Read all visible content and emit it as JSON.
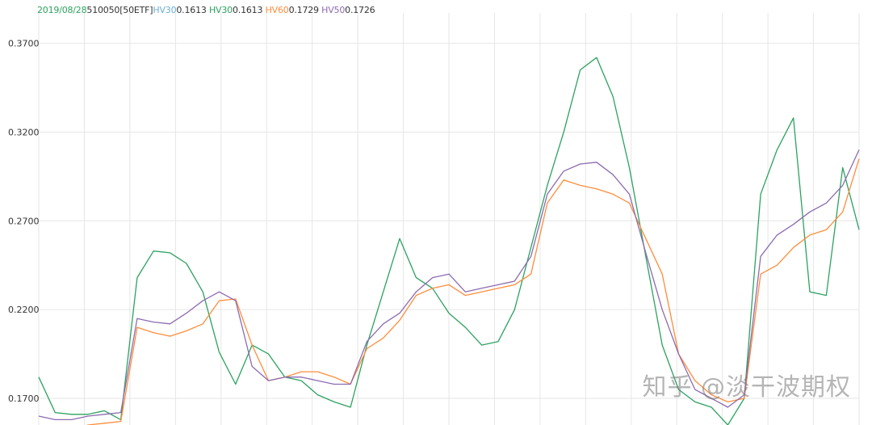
{
  "legend": {
    "date": "2019/08/28",
    "symbol": "510050[50ETF]",
    "items": [
      {
        "label": "HV30",
        "value": "0.1613",
        "color": "#6baed6"
      },
      {
        "label": "HV30",
        "value": "0.1613",
        "color": "#2ca25f"
      },
      {
        "label": "HV60",
        "value": "0.1729",
        "color": "#fd8d3c"
      },
      {
        "label": "HV50",
        "value": "0.1726",
        "color": "#8c6bb1"
      }
    ],
    "value_color": "#333333",
    "date_color": "#2ca25f"
  },
  "watermark": "知乎 @淡干波期权",
  "chart_data": {
    "type": "line",
    "y_ticks": [
      "0.3700",
      "0.3200",
      "0.2700",
      "0.2200",
      "0.1700"
    ],
    "ylim": [
      0.155,
      0.378
    ],
    "grid": true,
    "x": [
      0,
      1,
      2,
      3,
      4,
      5,
      6,
      7,
      8,
      9,
      10,
      11,
      12,
      13,
      14,
      15,
      16,
      17,
      18,
      19,
      20,
      21,
      22,
      23,
      24,
      25,
      26,
      27,
      28,
      29,
      30,
      31,
      32,
      33,
      34,
      35,
      36,
      37,
      38,
      39,
      40,
      41,
      42,
      43,
      44,
      45,
      46,
      47,
      48,
      49,
      50
    ],
    "series": [
      {
        "color": "#2ca25f",
        "values": [
          0.182,
          0.162,
          0.161,
          0.161,
          0.163,
          0.158,
          0.238,
          0.253,
          0.252,
          0.246,
          0.23,
          0.196,
          0.178,
          0.2,
          0.195,
          0.182,
          0.18,
          0.172,
          0.168,
          0.165,
          0.2,
          0.23,
          0.26,
          0.238,
          0.232,
          0.218,
          0.21,
          0.2,
          0.202,
          0.22,
          0.255,
          0.29,
          0.32,
          0.355,
          0.362,
          0.34,
          0.3,
          0.25,
          0.2,
          0.175,
          0.168,
          0.165,
          0.155,
          0.17,
          0.285,
          0.31,
          0.328,
          0.23,
          0.228,
          0.3,
          0.265
        ]
      },
      {
        "color": "#fd8d3c",
        "values": [
          0.149,
          0.15,
          0.152,
          0.155,
          0.156,
          0.157,
          0.21,
          0.207,
          0.205,
          0.208,
          0.212,
          0.225,
          0.226,
          0.2,
          0.18,
          0.182,
          0.185,
          0.185,
          0.182,
          0.178,
          0.198,
          0.204,
          0.214,
          0.228,
          0.232,
          0.234,
          0.228,
          0.23,
          0.232,
          0.234,
          0.24,
          0.28,
          0.293,
          0.29,
          0.288,
          0.285,
          0.28,
          0.26,
          0.24,
          0.195,
          0.18,
          0.172,
          0.168,
          0.17,
          0.24,
          0.245,
          0.255,
          0.262,
          0.265,
          0.275,
          0.305
        ]
      },
      {
        "color": "#8c6bb1",
        "values": [
          0.16,
          0.158,
          0.158,
          0.16,
          0.161,
          0.162,
          0.215,
          0.213,
          0.212,
          0.218,
          0.225,
          0.23,
          0.225,
          0.188,
          0.18,
          0.182,
          0.182,
          0.18,
          0.178,
          0.178,
          0.202,
          0.212,
          0.218,
          0.23,
          0.238,
          0.24,
          0.23,
          0.232,
          0.234,
          0.236,
          0.25,
          0.285,
          0.298,
          0.302,
          0.303,
          0.296,
          0.285,
          0.252,
          0.22,
          0.195,
          0.175,
          0.17,
          0.165,
          0.172,
          0.25,
          0.262,
          0.268,
          0.275,
          0.28,
          0.29,
          0.31
        ]
      }
    ]
  }
}
